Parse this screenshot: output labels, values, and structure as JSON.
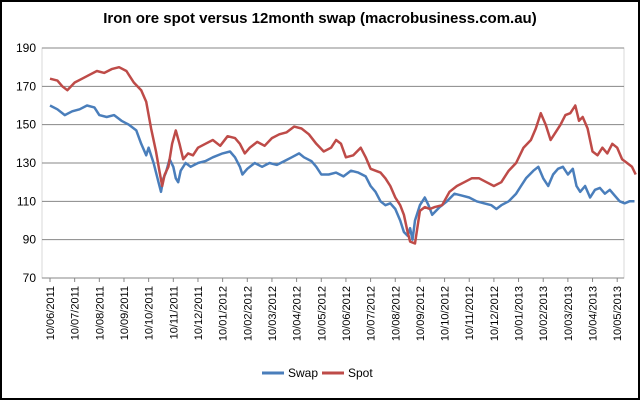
{
  "chart_data": {
    "type": "line",
    "title": "Iron ore spot versus 12month swap (macrobusiness.com.au)",
    "xlabel": "",
    "ylabel": "",
    "ylim": [
      70,
      190
    ],
    "yticks": [
      70,
      90,
      110,
      130,
      150,
      170,
      190
    ],
    "grid": "horizontal",
    "legend_position": "bottom",
    "x_tick_labels": [
      "10/06/2011",
      "10/07/2011",
      "10/08/2011",
      "10/09/2011",
      "10/10/2011",
      "10/11/2011",
      "10/12/2011",
      "10/01/2012",
      "10/02/2012",
      "10/03/2012",
      "10/04/2012",
      "10/05/2012",
      "10/06/2012",
      "10/07/2012",
      "10/08/2012",
      "10/09/2012",
      "10/10/2012",
      "10/11/2012",
      "10/12/2012",
      "10/01/2013",
      "10/02/2013",
      "10/03/2013",
      "10/04/2013",
      "10/05/2013"
    ],
    "series": [
      {
        "name": "Swap",
        "color": "#4a7ebb",
        "values": [
          [
            0,
            160
          ],
          [
            0.3,
            158
          ],
          [
            0.6,
            155
          ],
          [
            0.9,
            157
          ],
          [
            1.2,
            158
          ],
          [
            1.5,
            160
          ],
          [
            1.8,
            159
          ],
          [
            2.0,
            155
          ],
          [
            2.3,
            154
          ],
          [
            2.6,
            155
          ],
          [
            2.9,
            152
          ],
          [
            3.2,
            150
          ],
          [
            3.5,
            147
          ],
          [
            3.7,
            140
          ],
          [
            3.9,
            134
          ],
          [
            4.0,
            138
          ],
          [
            4.2,
            130
          ],
          [
            4.4,
            120
          ],
          [
            4.5,
            115
          ],
          [
            4.6,
            122
          ],
          [
            4.7,
            125
          ],
          [
            4.85,
            132
          ],
          [
            5.0,
            128
          ],
          [
            5.1,
            122
          ],
          [
            5.2,
            120
          ],
          [
            5.3,
            126
          ],
          [
            5.5,
            130
          ],
          [
            5.7,
            128
          ],
          [
            6.0,
            130
          ],
          [
            6.3,
            131
          ],
          [
            6.6,
            133
          ],
          [
            7.0,
            135
          ],
          [
            7.3,
            136
          ],
          [
            7.5,
            133
          ],
          [
            7.7,
            128
          ],
          [
            7.8,
            124
          ],
          [
            8.0,
            127
          ],
          [
            8.3,
            130
          ],
          [
            8.6,
            128
          ],
          [
            8.9,
            130
          ],
          [
            9.2,
            129
          ],
          [
            9.5,
            131
          ],
          [
            9.8,
            133
          ],
          [
            10.1,
            135
          ],
          [
            10.3,
            133
          ],
          [
            10.6,
            131
          ],
          [
            10.8,
            128
          ],
          [
            11.0,
            124
          ],
          [
            11.3,
            124
          ],
          [
            11.6,
            125
          ],
          [
            11.9,
            123
          ],
          [
            12.2,
            126
          ],
          [
            12.5,
            125
          ],
          [
            12.8,
            123
          ],
          [
            13.0,
            118
          ],
          [
            13.2,
            115
          ],
          [
            13.4,
            110
          ],
          [
            13.6,
            108
          ],
          [
            13.8,
            109
          ],
          [
            14.0,
            106
          ],
          [
            14.2,
            100
          ],
          [
            14.35,
            94
          ],
          [
            14.5,
            92
          ],
          [
            14.6,
            96
          ],
          [
            14.7,
            90
          ],
          [
            14.8,
            100
          ],
          [
            15.0,
            108
          ],
          [
            15.2,
            112
          ],
          [
            15.35,
            108
          ],
          [
            15.5,
            103
          ],
          [
            15.8,
            107
          ],
          [
            16.1,
            110
          ],
          [
            16.4,
            114
          ],
          [
            16.7,
            113
          ],
          [
            17.0,
            112
          ],
          [
            17.3,
            110
          ],
          [
            17.6,
            109
          ],
          [
            17.9,
            108
          ],
          [
            18.1,
            106
          ],
          [
            18.3,
            108
          ],
          [
            18.6,
            110
          ],
          [
            18.9,
            114
          ],
          [
            19.1,
            118
          ],
          [
            19.3,
            122
          ],
          [
            19.6,
            126
          ],
          [
            19.8,
            128
          ],
          [
            20.0,
            122
          ],
          [
            20.2,
            118
          ],
          [
            20.4,
            124
          ],
          [
            20.6,
            127
          ],
          [
            20.8,
            128
          ],
          [
            21.0,
            124
          ],
          [
            21.2,
            127
          ],
          [
            21.35,
            118
          ],
          [
            21.5,
            115
          ],
          [
            21.7,
            118
          ],
          [
            21.9,
            112
          ],
          [
            22.1,
            116
          ],
          [
            22.3,
            117
          ],
          [
            22.5,
            114
          ],
          [
            22.7,
            116
          ],
          [
            22.9,
            113
          ],
          [
            23.1,
            110
          ],
          [
            23.3,
            109
          ],
          [
            23.5,
            110
          ],
          [
            23.7,
            110
          ]
        ]
      },
      {
        "name": "Spot",
        "color": "#be4b48",
        "values": [
          [
            0,
            174
          ],
          [
            0.3,
            173
          ],
          [
            0.5,
            170
          ],
          [
            0.7,
            168
          ],
          [
            1.0,
            172
          ],
          [
            1.3,
            174
          ],
          [
            1.6,
            176
          ],
          [
            1.9,
            178
          ],
          [
            2.2,
            177
          ],
          [
            2.5,
            179
          ],
          [
            2.8,
            180
          ],
          [
            3.1,
            178
          ],
          [
            3.4,
            172
          ],
          [
            3.7,
            168
          ],
          [
            3.9,
            162
          ],
          [
            4.1,
            148
          ],
          [
            4.3,
            136
          ],
          [
            4.45,
            125
          ],
          [
            4.55,
            118
          ],
          [
            4.65,
            124
          ],
          [
            4.8,
            128
          ],
          [
            4.95,
            140
          ],
          [
            5.1,
            147
          ],
          [
            5.25,
            140
          ],
          [
            5.4,
            132
          ],
          [
            5.6,
            135
          ],
          [
            5.8,
            134
          ],
          [
            6.0,
            138
          ],
          [
            6.3,
            140
          ],
          [
            6.6,
            142
          ],
          [
            6.9,
            139
          ],
          [
            7.2,
            144
          ],
          [
            7.5,
            143
          ],
          [
            7.7,
            140
          ],
          [
            7.9,
            135
          ],
          [
            8.1,
            138
          ],
          [
            8.4,
            141
          ],
          [
            8.7,
            139
          ],
          [
            9.0,
            143
          ],
          [
            9.3,
            145
          ],
          [
            9.6,
            146
          ],
          [
            9.9,
            149
          ],
          [
            10.2,
            148
          ],
          [
            10.5,
            145
          ],
          [
            10.8,
            140
          ],
          [
            11.1,
            136
          ],
          [
            11.4,
            138
          ],
          [
            11.6,
            142
          ],
          [
            11.8,
            140
          ],
          [
            12.0,
            133
          ],
          [
            12.3,
            134
          ],
          [
            12.6,
            138
          ],
          [
            12.8,
            133
          ],
          [
            13.0,
            127
          ],
          [
            13.2,
            126
          ],
          [
            13.4,
            125
          ],
          [
            13.6,
            122
          ],
          [
            13.8,
            118
          ],
          [
            14.0,
            112
          ],
          [
            14.2,
            108
          ],
          [
            14.35,
            103
          ],
          [
            14.5,
            94
          ],
          [
            14.6,
            89
          ],
          [
            14.8,
            88
          ],
          [
            15.0,
            105
          ],
          [
            15.2,
            107
          ],
          [
            15.4,
            106
          ],
          [
            15.6,
            107
          ],
          [
            15.9,
            108
          ],
          [
            16.2,
            115
          ],
          [
            16.5,
            118
          ],
          [
            16.8,
            120
          ],
          [
            17.1,
            122
          ],
          [
            17.4,
            122
          ],
          [
            17.7,
            120
          ],
          [
            18.0,
            118
          ],
          [
            18.3,
            120
          ],
          [
            18.6,
            126
          ],
          [
            18.9,
            130
          ],
          [
            19.2,
            138
          ],
          [
            19.5,
            142
          ],
          [
            19.7,
            148
          ],
          [
            19.9,
            156
          ],
          [
            20.1,
            150
          ],
          [
            20.3,
            142
          ],
          [
            20.5,
            146
          ],
          [
            20.7,
            150
          ],
          [
            20.9,
            155
          ],
          [
            21.1,
            156
          ],
          [
            21.3,
            160
          ],
          [
            21.45,
            152
          ],
          [
            21.6,
            154
          ],
          [
            21.8,
            148
          ],
          [
            22.0,
            136
          ],
          [
            22.2,
            134
          ],
          [
            22.4,
            138
          ],
          [
            22.6,
            135
          ],
          [
            22.8,
            140
          ],
          [
            23.0,
            138
          ],
          [
            23.2,
            132
          ],
          [
            23.4,
            130
          ],
          [
            23.6,
            128
          ],
          [
            23.75,
            124
          ]
        ]
      }
    ]
  }
}
